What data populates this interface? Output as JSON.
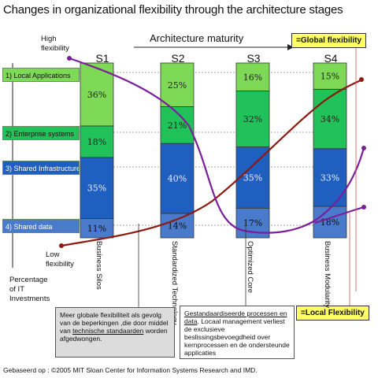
{
  "title": "Changes in organizational flexibility through the architecture stages",
  "architecture_maturity": "Architecture maturity",
  "y_axis": {
    "high": "High flexibility",
    "low": "Low flexibility",
    "percentage": "Percentage of IT Investments"
  },
  "stages": [
    "S1",
    "S2",
    "S3",
    "S4"
  ],
  "stage_names": [
    "Business Silos",
    "Standardized Technology",
    "Optimized Core",
    "Business Modularity"
  ],
  "layers": [
    "1) Local Applications",
    "2) Enterprise systems",
    "3) Shared Infrastructure",
    "4) Shared data"
  ],
  "legend": {
    "global": "=Global flexibility",
    "local": "=Local Flexibility"
  },
  "colors": {
    "local_applications": "#7ed957",
    "enterprise_systems": "#22c25a",
    "shared_infrastructure": "#1f5fbf",
    "shared_data": "#4a7acb",
    "global_line": "#8b1a10",
    "local_line": "#7a1e9a",
    "legend_fill": "#ffff66"
  },
  "chart_data": {
    "type": "bar",
    "stacked": true,
    "categories": [
      "S1",
      "S2",
      "S3",
      "S4"
    ],
    "series": [
      {
        "name": "4) Shared data",
        "values": [
          11,
          14,
          17,
          18
        ],
        "labels": [
          "11%",
          "14%",
          "17%",
          "18%"
        ]
      },
      {
        "name": "3) Shared Infrastructure",
        "values": [
          35,
          40,
          35,
          33
        ],
        "labels": [
          "35%",
          "40%",
          "35%",
          "33%"
        ]
      },
      {
        "name": "2) Enterprise systems",
        "values": [
          18,
          21,
          32,
          34
        ],
        "labels": [
          "18%",
          "21%",
          "32%",
          "34%"
        ]
      },
      {
        "name": "1) Local Applications",
        "values": [
          36,
          25,
          16,
          15
        ],
        "labels": [
          "36%",
          "25%",
          "16%",
          "15%"
        ]
      }
    ]
  },
  "notes": {
    "left": {
      "part1": "Meer globale flexibiliteit als gevolg van de beperkingen ,die door middel van ",
      "link": "technische standaarden",
      "part2": " worden afgedwongen."
    },
    "right": {
      "link": "Gestandaardiseerde processen en data",
      "part2": ". Locaal management verliest de exclusieve beslissingsbevoegdheid over kernprocessen en de ondersteunde applicaties"
    }
  },
  "source": "Gebaseerd op : ©2005 MIT Sloan Center for Information Systems Research and IMD."
}
